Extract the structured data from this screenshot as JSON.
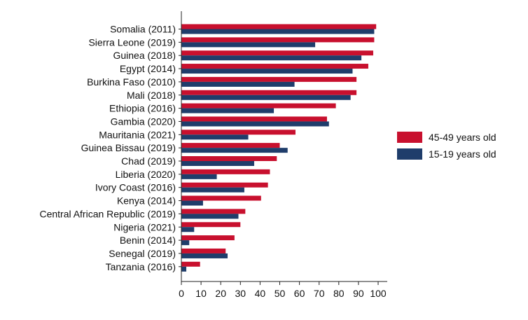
{
  "chart_data": {
    "type": "bar",
    "orientation": "horizontal",
    "categories": [
      "Somalia (2011)",
      "Sierra Leone (2019)",
      "Guinea (2018)",
      "Egypt (2014)",
      "Burkina Faso (2010)",
      "Mali (2018)",
      "Ethiopia (2016)",
      "Gambia (2020)",
      "Mauritania (2021)",
      "Guinea Bissau (2019)",
      "Chad (2019)",
      "Liberia (2020)",
      "Ivory Coast (2016)",
      "Kenya (2014)",
      "Central African Republic (2019)",
      "Nigeria (2021)",
      "Benin (2014)",
      "Senegal (2019)",
      "Tanzania (2016)"
    ],
    "series": [
      {
        "name": "45-49 years old",
        "color": "#c8102e",
        "values": [
          99,
          98,
          97.5,
          95,
          89,
          89,
          78.5,
          74,
          58,
          50,
          48.5,
          45,
          44,
          40.5,
          32.5,
          30,
          27,
          22.5,
          9.5
        ]
      },
      {
        "name": "15-19 years old",
        "color": "#1f3d6b",
        "values": [
          98,
          68,
          91.5,
          87,
          57.5,
          86,
          47,
          75,
          34,
          54,
          37,
          18,
          32,
          11,
          29,
          6.5,
          4,
          23.5,
          2.5
        ]
      }
    ],
    "xlim": [
      0,
      100
    ],
    "xticks": [
      "0",
      "10",
      "20",
      "30",
      "40",
      "50",
      "60",
      "70",
      "80",
      "90",
      "100"
    ],
    "title": "",
    "xlabel": "",
    "ylabel": "",
    "grid": false,
    "legend": "right"
  }
}
